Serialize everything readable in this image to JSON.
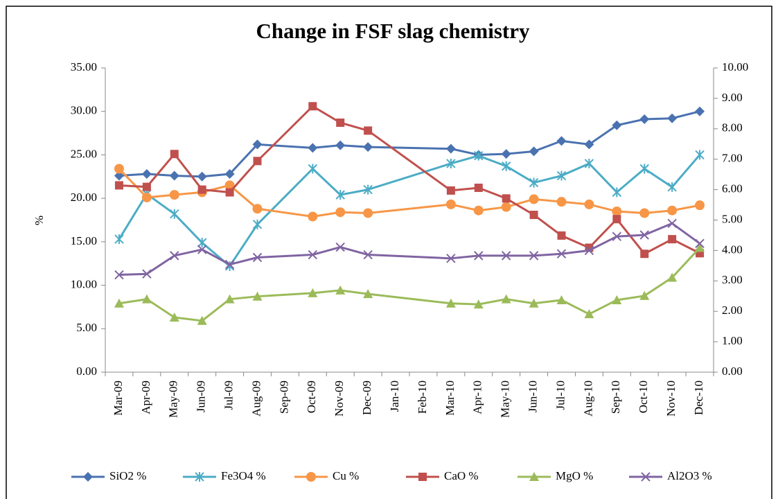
{
  "chart_data": {
    "type": "line",
    "title": "Change in FSF slag chemistry",
    "y_label": "%",
    "categories": [
      "Mar-09",
      "Apr-09",
      "May-09",
      "Jun-09",
      "Jul-09",
      "Aug-09",
      "Sep-09",
      "Oct-09",
      "Nov-09",
      "Dec-09",
      "Jan-10",
      "Feb-10",
      "Mar-10",
      "Apr-10",
      "May-10",
      "Jun-10",
      "Jul-10",
      "Aug-10",
      "Sep-10",
      "Oct-10",
      "Nov-10",
      "Dec-10"
    ],
    "ylim": [
      0,
      35
    ],
    "yticks": [
      {
        "value": 0,
        "label": "0.00"
      },
      {
        "value": 5,
        "label": "5.00"
      },
      {
        "value": 10,
        "label": "10.00"
      },
      {
        "value": 15,
        "label": "15.00"
      },
      {
        "value": 20,
        "label": "20.00"
      },
      {
        "value": 25,
        "label": "25.00"
      },
      {
        "value": 30,
        "label": "30.00"
      },
      {
        "value": 35,
        "label": "35.00"
      }
    ],
    "y2lim": [
      0,
      10
    ],
    "y2ticks": [
      {
        "value": 0,
        "label": "0.00"
      },
      {
        "value": 1,
        "label": "1.00"
      },
      {
        "value": 2,
        "label": "2.00"
      },
      {
        "value": 3,
        "label": "3.00"
      },
      {
        "value": 4,
        "label": "4.00"
      },
      {
        "value": 5,
        "label": "5.00"
      },
      {
        "value": 6,
        "label": "6.00"
      },
      {
        "value": 7,
        "label": "7.00"
      },
      {
        "value": 8,
        "label": "8.00"
      },
      {
        "value": 9,
        "label": "9.00"
      },
      {
        "value": 10,
        "label": "10.00"
      }
    ],
    "legend": "bottom",
    "series": [
      {
        "name": "SiO2 %",
        "color": "#4a72b0",
        "marker": "diamond",
        "values": [
          22.6,
          22.8,
          22.6,
          22.5,
          22.8,
          26.2,
          null,
          25.8,
          26.1,
          25.9,
          null,
          null,
          25.7,
          25.0,
          25.1,
          25.4,
          26.6,
          26.2,
          28.4,
          29.1,
          29.2,
          30.0
        ]
      },
      {
        "name": "Fe3O4 %",
        "color": "#4bacc6",
        "marker": "star",
        "values": [
          15.3,
          20.5,
          18.2,
          14.9,
          12.2,
          17.0,
          null,
          23.4,
          20.4,
          21.0,
          null,
          null,
          24.0,
          24.9,
          23.7,
          21.8,
          22.6,
          24.0,
          20.7,
          23.4,
          21.3,
          25.0
        ]
      },
      {
        "name": "Cu %",
        "color": "#f79646",
        "marker": "circle",
        "values": [
          23.4,
          20.1,
          20.4,
          20.7,
          21.5,
          18.8,
          null,
          17.9,
          18.4,
          18.3,
          null,
          null,
          19.3,
          18.6,
          19.0,
          19.9,
          19.6,
          19.3,
          18.5,
          18.3,
          18.6,
          19.2
        ]
      },
      {
        "name": "CaO %",
        "color": "#c0504d",
        "marker": "square",
        "axis": "y2",
        "values": [
          6.14,
          6.09,
          7.17,
          6.0,
          5.91,
          6.94,
          null,
          8.74,
          8.2,
          7.94,
          null,
          null,
          5.97,
          6.06,
          5.71,
          5.17,
          4.49,
          4.09,
          5.03,
          3.89,
          4.37,
          3.91
        ]
      },
      {
        "name": "MgO %",
        "color": "#9bbb59",
        "marker": "triangle",
        "axis": "y2",
        "values": [
          2.26,
          2.4,
          1.8,
          1.69,
          2.4,
          2.49,
          null,
          2.6,
          2.69,
          2.57,
          null,
          null,
          2.26,
          2.23,
          2.4,
          2.26,
          2.37,
          1.91,
          2.37,
          2.51,
          3.11,
          4.09
        ]
      },
      {
        "name": "Al2O3 %",
        "color": "#8064a2",
        "marker": "x",
        "axis": "y2",
        "values": [
          3.2,
          3.23,
          3.83,
          4.03,
          3.54,
          3.77,
          null,
          3.86,
          4.11,
          3.86,
          null,
          null,
          3.74,
          3.83,
          3.83,
          3.83,
          3.89,
          4.0,
          4.46,
          4.51,
          4.89,
          4.23
        ]
      }
    ]
  }
}
